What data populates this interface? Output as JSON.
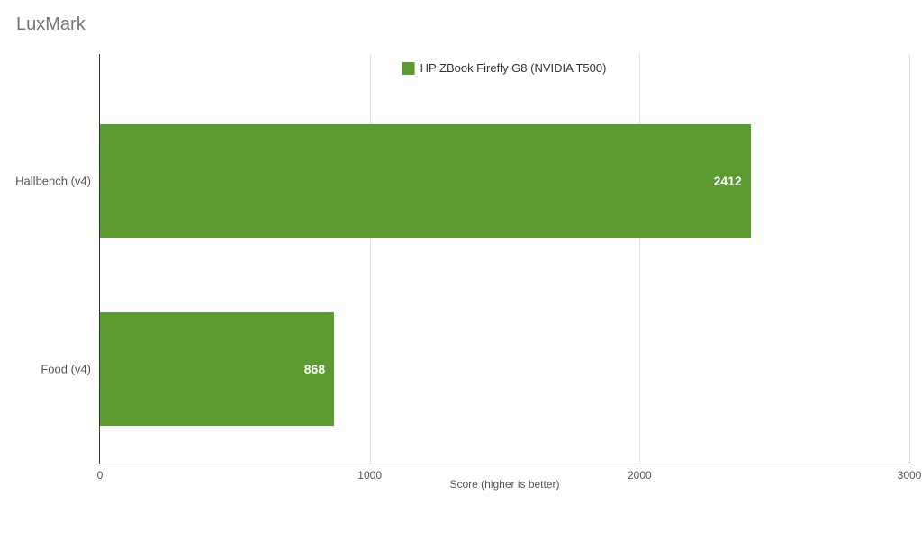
{
  "chart": {
    "type": "bar",
    "orientation": "horizontal",
    "title": "LuxMark",
    "title_fontsize": 20,
    "title_color": "#757575",
    "x_axis": {
      "label": "Score (higher is better)",
      "min": 0,
      "max": 3000,
      "tick_step": 1000,
      "ticks": [
        0,
        1000,
        2000,
        3000
      ],
      "label_fontsize": 12,
      "tick_fontsize": 12,
      "tick_color": "#555555"
    },
    "categories": [
      {
        "label": "Hallbench (v4)",
        "value": 2412
      },
      {
        "label": "Food (v4)",
        "value": 868
      }
    ],
    "series": {
      "name": "HP ZBook Firefly G8 (NVIDIA T500)",
      "color": "#5b9b30"
    },
    "bar_height_ratio": 0.6,
    "value_label_color": "#ffffff",
    "value_label_fontweight": "700",
    "background_color": "#ffffff",
    "grid_color": "#e0e0e0",
    "axis_color": "#333333",
    "y_label_fontsize": 13,
    "legend_fontsize": 13
  }
}
